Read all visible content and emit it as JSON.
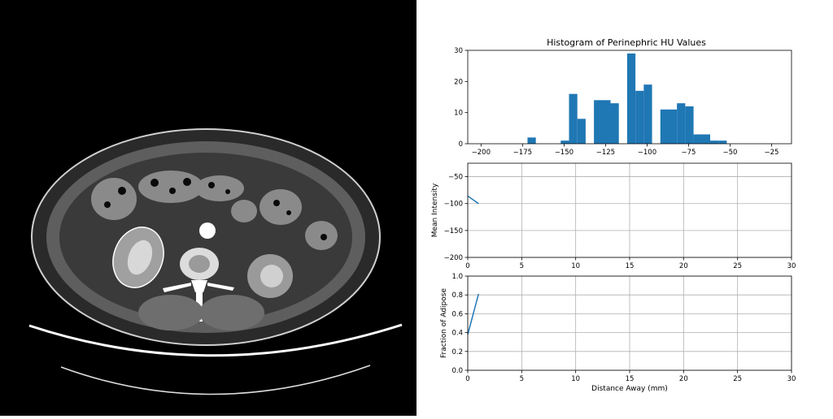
{
  "ct_image": {
    "alt": "Axial abdominal CT slice with the right kidney outlined"
  },
  "chart_data": [
    {
      "type": "bar",
      "title": "Histogram of Perinephric HU Values",
      "xlabel": "",
      "ylabel": "",
      "bins": [
        {
          "x0": -172,
          "x1": -167,
          "count": 2
        },
        {
          "x0": -152,
          "x1": -147,
          "count": 1
        },
        {
          "x0": -147,
          "x1": -142,
          "count": 16
        },
        {
          "x0": -142,
          "x1": -137,
          "count": 8
        },
        {
          "x0": -137,
          "x1": -132,
          "count": 0
        },
        {
          "x0": -132,
          "x1": -122,
          "count": 14
        },
        {
          "x0": -122,
          "x1": -117,
          "count": 13
        },
        {
          "x0": -117,
          "x1": -112,
          "count": 0
        },
        {
          "x0": -112,
          "x1": -107,
          "count": 29
        },
        {
          "x0": -107,
          "x1": -102,
          "count": 17
        },
        {
          "x0": -102,
          "x1": -97,
          "count": 19
        },
        {
          "x0": -97,
          "x1": -92,
          "count": 0
        },
        {
          "x0": -92,
          "x1": -82,
          "count": 11
        },
        {
          "x0": -82,
          "x1": -77,
          "count": 13
        },
        {
          "x0": -77,
          "x1": -72,
          "count": 12
        },
        {
          "x0": -72,
          "x1": -62,
          "count": 3
        },
        {
          "x0": -62,
          "x1": -57,
          "count": 1
        },
        {
          "x0": -57,
          "x1": -52,
          "count": 1
        }
      ],
      "xlim": [
        -208,
        -13
      ],
      "ylim": [
        0,
        30
      ],
      "xticks": [
        -200,
        -175,
        -150,
        -125,
        -100,
        -75,
        -50,
        -25
      ],
      "yticks": [
        0,
        10,
        20,
        30
      ],
      "grid": false,
      "color": "#1f77b4"
    },
    {
      "type": "line",
      "title": "",
      "xlabel": "",
      "ylabel": "Mean Intensity",
      "x": [
        0,
        1
      ],
      "y": [
        -86,
        -100
      ],
      "xlim": [
        0,
        30
      ],
      "ylim": [
        -200,
        -25
      ],
      "xticks": [
        0,
        5,
        10,
        15,
        20,
        25,
        30
      ],
      "yticks": [
        -200,
        -150,
        -100,
        -50
      ],
      "grid": true,
      "color": "#1f77b4"
    },
    {
      "type": "line",
      "title": "",
      "xlabel": "Distance Away (mm)",
      "ylabel": "Fraction of Adipose",
      "x": [
        0,
        1
      ],
      "y": [
        0.38,
        0.81
      ],
      "xlim": [
        0,
        30
      ],
      "ylim": [
        0.0,
        1.0
      ],
      "xticks": [
        0,
        5,
        10,
        15,
        20,
        25,
        30
      ],
      "yticks": [
        "0.0",
        "0.2",
        "0.4",
        "0.6",
        "0.8",
        "1.0"
      ],
      "grid": true,
      "color": "#1f77b4"
    }
  ]
}
